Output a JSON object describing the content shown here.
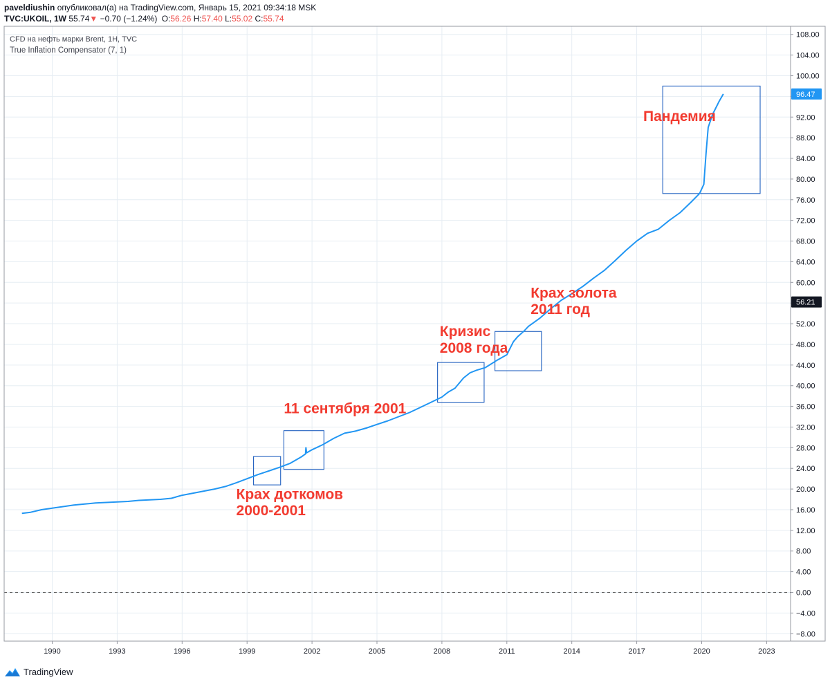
{
  "header": {
    "author": "paveldiushin",
    "published_text": "опубликовал(а) на TradingView.com, Январь 15, 2021 09:34:18 MSK",
    "symbol": "TVC:UKOIL, 1W",
    "last": "55.74",
    "change_arrow": "▼",
    "change": "−0.70 (−1.24%)",
    "open_label": "O:",
    "open": "56.26",
    "high_label": "H:",
    "high": "57.40",
    "low_label": "L:",
    "low": "55.02",
    "close_label": "C:",
    "close": "55.74"
  },
  "legend": {
    "series_title": "CFD на нефть марки Brent, 1Н, TVC",
    "indicator_title": "True Inflation Compensator (7, 1)"
  },
  "footer": {
    "brand": "TradingView"
  },
  "colors": {
    "line": "#2196f3",
    "annotation": "#f23b30",
    "box": "#1f5fbf",
    "grid": "#e6edf3",
    "axis": "#131722",
    "price_badge_blue": "#2196f3",
    "price_badge_black": "#131722"
  },
  "chart_data": {
    "type": "line",
    "title": "CFD на нефть марки Brent, 1Н, TVC — True Inflation Compensator (7, 1)",
    "xlabel": "",
    "ylabel": "",
    "xlim": [
      1988.0,
      2024.0
    ],
    "ylim": [
      -10.0,
      109.0
    ],
    "x_ticks": [
      1990,
      1993,
      1996,
      1999,
      2002,
      2005,
      2008,
      2011,
      2014,
      2017,
      2020,
      2023
    ],
    "y_ticks": [
      108,
      104,
      100,
      96,
      92,
      88,
      84,
      80,
      76,
      72,
      68,
      64,
      60,
      56,
      52,
      48,
      44,
      40,
      36,
      32,
      28,
      24,
      20,
      16,
      12,
      8,
      4,
      0,
      -4,
      -8
    ],
    "zero_line": 0,
    "price_badges": [
      {
        "value": 96.47,
        "label": "96.47",
        "style": "blue"
      },
      {
        "value": 56.21,
        "label": "56.21",
        "style": "black"
      }
    ],
    "series": [
      {
        "name": "True Inflation Compensator (7, 1)",
        "x": [
          1988.6,
          1989.0,
          1989.5,
          1990.0,
          1990.5,
          1991.0,
          1991.5,
          1992.0,
          1992.5,
          1993.0,
          1993.5,
          1994.0,
          1994.5,
          1995.0,
          1995.5,
          1996.0,
          1996.5,
          1997.0,
          1997.5,
          1998.0,
          1998.5,
          1999.0,
          1999.5,
          2000.0,
          2000.5,
          2001.0,
          2001.5,
          2001.7,
          2001.72,
          2001.75,
          2002.0,
          2002.5,
          2003.0,
          2003.5,
          2004.0,
          2004.5,
          2005.0,
          2005.5,
          2006.0,
          2006.5,
          2007.0,
          2007.5,
          2008.0,
          2008.3,
          2008.6,
          2009.0,
          2009.3,
          2009.6,
          2010.0,
          2010.5,
          2011.0,
          2011.3,
          2011.5,
          2011.8,
          2012.0,
          2012.5,
          2013.0,
          2013.5,
          2014.0,
          2014.5,
          2015.0,
          2015.5,
          2016.0,
          2016.5,
          2017.0,
          2017.5,
          2018.0,
          2018.5,
          2019.0,
          2019.5,
          2019.9,
          2020.1,
          2020.2,
          2020.3,
          2020.5,
          2020.8,
          2021.0
        ],
        "y": [
          15.3,
          15.5,
          16.0,
          16.3,
          16.6,
          16.9,
          17.1,
          17.3,
          17.4,
          17.5,
          17.6,
          17.8,
          17.9,
          18.0,
          18.2,
          18.8,
          19.2,
          19.6,
          20.0,
          20.5,
          21.2,
          22.0,
          22.8,
          23.5,
          24.2,
          25.0,
          26.2,
          26.8,
          28.0,
          27.0,
          27.6,
          28.6,
          29.8,
          30.8,
          31.2,
          31.8,
          32.5,
          33.2,
          34.0,
          34.8,
          35.8,
          36.8,
          37.8,
          38.8,
          39.5,
          41.5,
          42.5,
          43.0,
          43.5,
          44.8,
          46.0,
          48.5,
          49.5,
          50.6,
          51.5,
          53.0,
          54.8,
          56.5,
          57.8,
          59.2,
          60.8,
          62.3,
          64.2,
          66.2,
          68.0,
          69.5,
          70.3,
          72.0,
          73.5,
          75.5,
          77.2,
          79.0,
          85.0,
          90.0,
          92.5,
          95.0,
          96.47
        ]
      }
    ],
    "annotations": [
      {
        "text": "Пандемия",
        "x": 2017.3,
        "y": 91.2
      },
      {
        "text": "Крах золота",
        "x": 2012.1,
        "y": 57.0
      },
      {
        "text": "2011 год",
        "x": 2012.1,
        "y": 53.9
      },
      {
        "text": "Кризис",
        "x": 2007.9,
        "y": 49.6
      },
      {
        "text": "2008 года",
        "x": 2007.9,
        "y": 46.4
      },
      {
        "text": "11 сентября 2001",
        "x": 2000.7,
        "y": 34.7
      },
      {
        "text": "Крах доткомов",
        "x": 1998.5,
        "y": 18.1
      },
      {
        "text": "2000-2001",
        "x": 1998.5,
        "y": 14.9
      }
    ],
    "highlight_boxes": [
      {
        "x0": 1999.3,
        "x1": 2000.55,
        "y0": 20.8,
        "y1": 26.3
      },
      {
        "x0": 2000.7,
        "x1": 2002.55,
        "y0": 23.8,
        "y1": 31.3
      },
      {
        "x0": 2007.8,
        "x1": 2009.95,
        "y0": 36.8,
        "y1": 44.5
      },
      {
        "x0": 2010.45,
        "x1": 2012.6,
        "y0": 42.9,
        "y1": 50.5
      },
      {
        "x0": 2018.2,
        "x1": 2022.7,
        "y0": 77.2,
        "y1": 98.0
      }
    ]
  }
}
